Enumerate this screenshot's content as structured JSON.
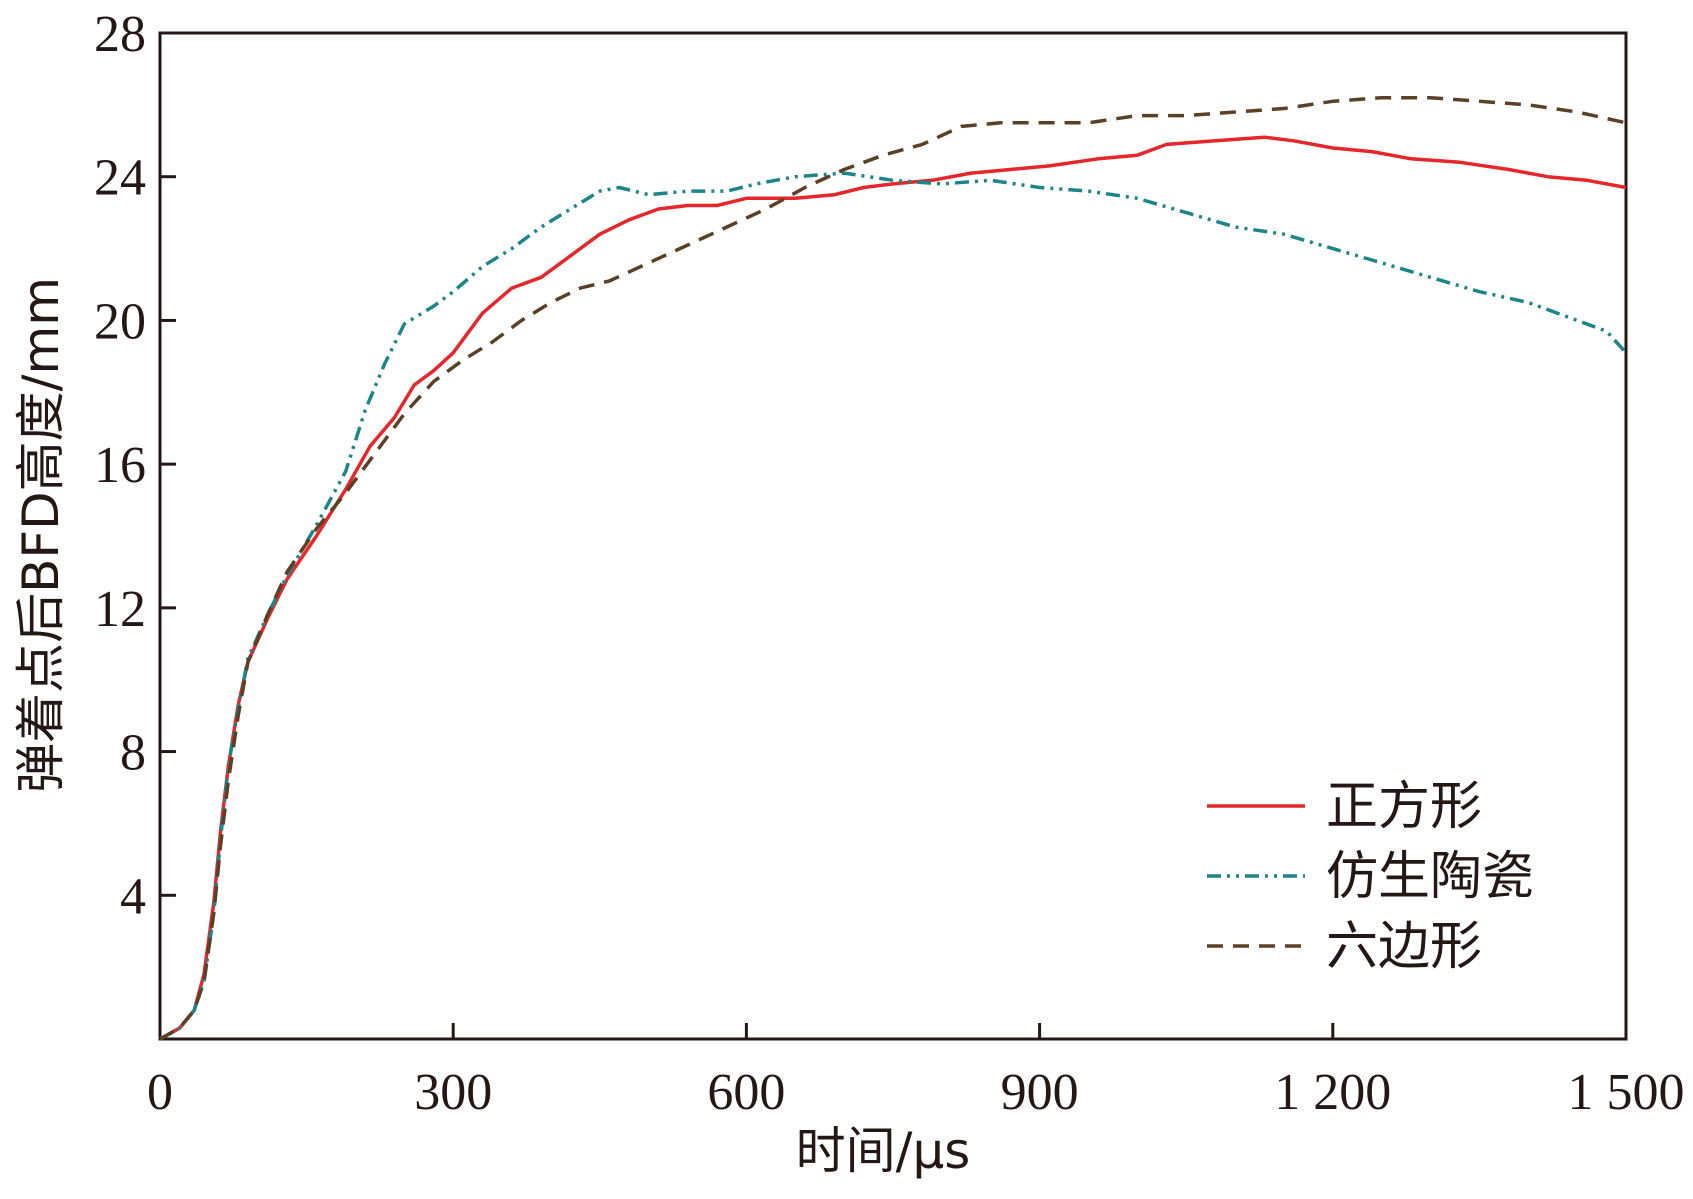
{
  "chart_data": {
    "type": "line",
    "title": "",
    "xlabel": "时间/μs",
    "ylabel": "弹着点后BFD高度/mm",
    "xlim": [
      0,
      1500
    ],
    "ylim": [
      0,
      28
    ],
    "x_ticks": [
      0,
      300,
      600,
      900,
      1200,
      1500
    ],
    "x_tick_labels": [
      "0",
      "300",
      "600",
      "900",
      "1 200",
      "1 500"
    ],
    "y_ticks": [
      4,
      8,
      12,
      16,
      20,
      24,
      28
    ],
    "y_tick_labels": [
      "4",
      "8",
      "12",
      "16",
      "20",
      "24",
      "28"
    ],
    "grid": false,
    "legend_position": "lower-right",
    "series": [
      {
        "name": "正方形",
        "color": "#e5262a",
        "style": "solid",
        "points": [
          [
            0,
            0
          ],
          [
            20,
            0.3
          ],
          [
            35,
            0.8
          ],
          [
            45,
            1.8
          ],
          [
            55,
            3.8
          ],
          [
            62,
            5.8
          ],
          [
            70,
            7.6
          ],
          [
            80,
            9.3
          ],
          [
            90,
            10.5
          ],
          [
            110,
            11.7
          ],
          [
            130,
            12.8
          ],
          [
            160,
            14.0
          ],
          [
            190,
            15.3
          ],
          [
            215,
            16.5
          ],
          [
            240,
            17.3
          ],
          [
            260,
            18.2
          ],
          [
            280,
            18.6
          ],
          [
            300,
            19.1
          ],
          [
            330,
            20.2
          ],
          [
            360,
            20.9
          ],
          [
            390,
            21.2
          ],
          [
            420,
            21.8
          ],
          [
            450,
            22.4
          ],
          [
            480,
            22.8
          ],
          [
            510,
            23.1
          ],
          [
            540,
            23.2
          ],
          [
            570,
            23.2
          ],
          [
            600,
            23.4
          ],
          [
            650,
            23.4
          ],
          [
            690,
            23.5
          ],
          [
            720,
            23.7
          ],
          [
            750,
            23.8
          ],
          [
            790,
            23.9
          ],
          [
            830,
            24.1
          ],
          [
            870,
            24.2
          ],
          [
            910,
            24.3
          ],
          [
            960,
            24.5
          ],
          [
            1000,
            24.6
          ],
          [
            1030,
            24.9
          ],
          [
            1080,
            25.0
          ],
          [
            1130,
            25.1
          ],
          [
            1160,
            25.0
          ],
          [
            1200,
            24.8
          ],
          [
            1240,
            24.7
          ],
          [
            1280,
            24.5
          ],
          [
            1330,
            24.4
          ],
          [
            1380,
            24.2
          ],
          [
            1420,
            24.0
          ],
          [
            1460,
            23.9
          ],
          [
            1500,
            23.7
          ]
        ]
      },
      {
        "name": "仿生陶瓷",
        "color": "#1b8589",
        "style": "dash-dot-dot",
        "points": [
          [
            0,
            0
          ],
          [
            20,
            0.3
          ],
          [
            35,
            0.8
          ],
          [
            45,
            1.6
          ],
          [
            55,
            3.5
          ],
          [
            62,
            5.6
          ],
          [
            70,
            7.6
          ],
          [
            80,
            9.2
          ],
          [
            90,
            10.6
          ],
          [
            110,
            11.8
          ],
          [
            130,
            12.9
          ],
          [
            160,
            14.3
          ],
          [
            190,
            15.8
          ],
          [
            210,
            17.5
          ],
          [
            230,
            18.8
          ],
          [
            250,
            19.9
          ],
          [
            280,
            20.4
          ],
          [
            300,
            20.8
          ],
          [
            330,
            21.5
          ],
          [
            360,
            22.0
          ],
          [
            390,
            22.6
          ],
          [
            420,
            23.1
          ],
          [
            450,
            23.6
          ],
          [
            470,
            23.7
          ],
          [
            500,
            23.5
          ],
          [
            540,
            23.6
          ],
          [
            580,
            23.6
          ],
          [
            610,
            23.8
          ],
          [
            650,
            24.0
          ],
          [
            700,
            24.1
          ],
          [
            750,
            23.9
          ],
          [
            800,
            23.8
          ],
          [
            850,
            23.9
          ],
          [
            900,
            23.7
          ],
          [
            950,
            23.6
          ],
          [
            1000,
            23.4
          ],
          [
            1050,
            23.0
          ],
          [
            1100,
            22.6
          ],
          [
            1150,
            22.4
          ],
          [
            1200,
            22.0
          ],
          [
            1250,
            21.6
          ],
          [
            1300,
            21.2
          ],
          [
            1350,
            20.8
          ],
          [
            1400,
            20.5
          ],
          [
            1450,
            20.0
          ],
          [
            1480,
            19.7
          ],
          [
            1500,
            19.1
          ]
        ]
      },
      {
        "name": "六边形",
        "color": "#5b4025",
        "style": "dashed",
        "points": [
          [
            0,
            0
          ],
          [
            20,
            0.3
          ],
          [
            35,
            0.8
          ],
          [
            45,
            1.6
          ],
          [
            55,
            3.5
          ],
          [
            62,
            5.4
          ],
          [
            70,
            7.2
          ],
          [
            80,
            9.0
          ],
          [
            90,
            10.5
          ],
          [
            110,
            11.8
          ],
          [
            130,
            13.0
          ],
          [
            160,
            14.2
          ],
          [
            190,
            15.2
          ],
          [
            220,
            16.3
          ],
          [
            250,
            17.4
          ],
          [
            280,
            18.3
          ],
          [
            310,
            18.9
          ],
          [
            340,
            19.4
          ],
          [
            370,
            20.0
          ],
          [
            400,
            20.5
          ],
          [
            430,
            20.9
          ],
          [
            460,
            21.1
          ],
          [
            500,
            21.6
          ],
          [
            540,
            22.1
          ],
          [
            580,
            22.6
          ],
          [
            620,
            23.1
          ],
          [
            660,
            23.7
          ],
          [
            700,
            24.2
          ],
          [
            740,
            24.6
          ],
          [
            780,
            24.9
          ],
          [
            820,
            25.4
          ],
          [
            860,
            25.5
          ],
          [
            900,
            25.5
          ],
          [
            950,
            25.5
          ],
          [
            1000,
            25.7
          ],
          [
            1050,
            25.7
          ],
          [
            1100,
            25.8
          ],
          [
            1150,
            25.9
          ],
          [
            1200,
            26.1
          ],
          [
            1250,
            26.2
          ],
          [
            1300,
            26.2
          ],
          [
            1350,
            26.1
          ],
          [
            1400,
            26.0
          ],
          [
            1450,
            25.8
          ],
          [
            1500,
            25.5
          ]
        ]
      }
    ]
  }
}
